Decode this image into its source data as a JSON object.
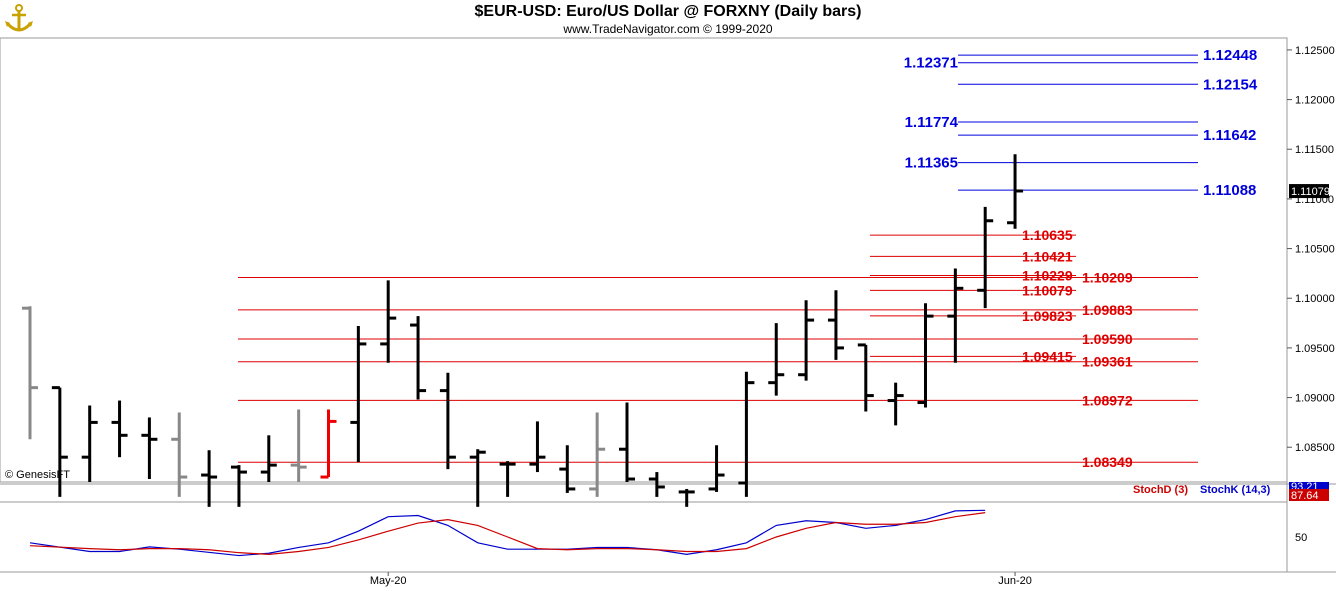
{
  "header": {
    "title": "$EUR-USD:  Euro/US Dollar @ FORXNY  (Daily bars)",
    "subtitle": "www.TradeNavigator.com © 1999-2020"
  },
  "watermark": "© GenesisFT",
  "logo_icon": "anchor-logo-icon",
  "colors": {
    "resistance": "#0000dd",
    "support": "#dd0000",
    "bars": "#000000",
    "gray_bars": "#888888",
    "red_bar": "#ee0000",
    "stochK": "#0000cc",
    "stochD": "#cc0000"
  },
  "chart_data": [
    {
      "type": "ohlc",
      "ylim": [
        1.0815,
        1.1262
      ],
      "y_ticks": [
        "1.12500",
        "1.12000",
        "1.11500",
        "1.11000",
        "1.10500",
        "1.10000",
        "1.09500",
        "1.09000",
        "1.08500"
      ],
      "last_price": "1.11079",
      "x_labels": [
        {
          "label": "May-20",
          "index": 12
        },
        {
          "label": "Jun-20",
          "index": 33
        }
      ],
      "bars": [
        {
          "o": 1.099,
          "h": 1.0992,
          "l": 1.0858,
          "c": 1.091,
          "color": "gray"
        },
        {
          "o": 1.091,
          "h": 1.091,
          "l": 1.08,
          "c": 1.084,
          "color": "black"
        },
        {
          "o": 1.084,
          "h": 1.0892,
          "l": 1.0815,
          "c": 1.0875,
          "color": "black"
        },
        {
          "o": 1.0875,
          "h": 1.0897,
          "l": 1.084,
          "c": 1.0862,
          "color": "black"
        },
        {
          "o": 1.0862,
          "h": 1.088,
          "l": 1.0818,
          "c": 1.0858,
          "color": "black"
        },
        {
          "o": 1.0858,
          "h": 1.0885,
          "l": 1.08,
          "c": 1.082,
          "color": "gray"
        },
        {
          "o": 1.0822,
          "h": 1.0847,
          "l": 1.079,
          "c": 1.082,
          "color": "black"
        },
        {
          "o": 1.083,
          "h": 1.0832,
          "l": 1.079,
          "c": 1.0825,
          "color": "black"
        },
        {
          "o": 1.0825,
          "h": 1.0862,
          "l": 1.0815,
          "c": 1.0832,
          "color": "black"
        },
        {
          "o": 1.0832,
          "h": 1.0888,
          "l": 1.0815,
          "c": 1.083,
          "color": "gray"
        },
        {
          "o": 1.082,
          "h": 1.0888,
          "l": 1.082,
          "c": 1.0876,
          "color": "red"
        },
        {
          "o": 1.0875,
          "h": 1.0972,
          "l": 1.0835,
          "c": 1.0954,
          "color": "black"
        },
        {
          "o": 1.0954,
          "h": 1.1018,
          "l": 1.0935,
          "c": 1.098,
          "color": "black"
        },
        {
          "o": 1.0973,
          "h": 1.0982,
          "l": 1.0898,
          "c": 1.0907,
          "color": "black"
        },
        {
          "o": 1.0907,
          "h": 1.0925,
          "l": 1.0828,
          "c": 1.084,
          "color": "black"
        },
        {
          "o": 1.084,
          "h": 1.0848,
          "l": 1.079,
          "c": 1.0845,
          "color": "black"
        },
        {
          "o": 1.0833,
          "h": 1.0836,
          "l": 1.08,
          "c": 1.0833,
          "color": "black"
        },
        {
          "o": 1.0833,
          "h": 1.0876,
          "l": 1.0825,
          "c": 1.084,
          "color": "black"
        },
        {
          "o": 1.0828,
          "h": 1.0852,
          "l": 1.0804,
          "c": 1.0808,
          "color": "black"
        },
        {
          "o": 1.0808,
          "h": 1.0885,
          "l": 1.08,
          "c": 1.0848,
          "color": "gray"
        },
        {
          "o": 1.0848,
          "h": 1.0895,
          "l": 1.0815,
          "c": 1.0818,
          "color": "black"
        },
        {
          "o": 1.0818,
          "h": 1.0825,
          "l": 1.08,
          "c": 1.081,
          "color": "black"
        },
        {
          "o": 1.0805,
          "h": 1.0808,
          "l": 1.079,
          "c": 1.0805,
          "color": "black"
        },
        {
          "o": 1.0808,
          "h": 1.0852,
          "l": 1.0805,
          "c": 1.0822,
          "color": "black"
        },
        {
          "o": 1.0814,
          "h": 1.0926,
          "l": 1.08,
          "c": 1.0915,
          "color": "black"
        },
        {
          "o": 1.0915,
          "h": 1.0975,
          "l": 1.0902,
          "c": 1.0923,
          "color": "black"
        },
        {
          "o": 1.0923,
          "h": 1.0998,
          "l": 1.0917,
          "c": 1.0978,
          "color": "black"
        },
        {
          "o": 1.0978,
          "h": 1.1008,
          "l": 1.0938,
          "c": 1.095,
          "color": "black"
        },
        {
          "o": 1.0953,
          "h": 1.0953,
          "l": 1.0886,
          "c": 1.0902,
          "color": "black"
        },
        {
          "o": 1.0897,
          "h": 1.0915,
          "l": 1.0872,
          "c": 1.0902,
          "color": "black"
        },
        {
          "o": 1.0895,
          "h": 1.0995,
          "l": 1.089,
          "c": 1.0982,
          "color": "black"
        },
        {
          "o": 1.0982,
          "h": 1.103,
          "l": 1.0935,
          "c": 1.101,
          "color": "black"
        },
        {
          "o": 1.1008,
          "h": 1.1092,
          "l": 1.099,
          "c": 1.1078,
          "color": "black"
        },
        {
          "o": 1.1076,
          "h": 1.1145,
          "l": 1.107,
          "c": 1.1108,
          "color": "black"
        }
      ],
      "levels": [
        {
          "value": 1.12448,
          "label": "1.12448",
          "side": "right",
          "color": "blue"
        },
        {
          "value": 1.12371,
          "label": "1.12371",
          "side": "left",
          "color": "blue"
        },
        {
          "value": 1.12154,
          "label": "1.12154",
          "side": "right",
          "color": "blue"
        },
        {
          "value": 1.11774,
          "label": "1.11774",
          "side": "left",
          "color": "blue"
        },
        {
          "value": 1.11642,
          "label": "1.11642",
          "side": "right",
          "color": "blue"
        },
        {
          "value": 1.11365,
          "label": "1.11365",
          "side": "left",
          "color": "blue"
        },
        {
          "value": 1.11088,
          "label": "1.11088",
          "side": "right",
          "color": "blue"
        },
        {
          "value": 1.10635,
          "label": "1.10635",
          "side": "left",
          "color": "red"
        },
        {
          "value": 1.10421,
          "label": "1.10421",
          "side": "left",
          "color": "red"
        },
        {
          "value": 1.10229,
          "label": "1.10229",
          "side": "left",
          "color": "red"
        },
        {
          "value": 1.10209,
          "label": "1.10209",
          "side": "right",
          "color": "red"
        },
        {
          "value": 1.10079,
          "label": "1.10079",
          "side": "left",
          "color": "red"
        },
        {
          "value": 1.09883,
          "label": "1.09883",
          "side": "right",
          "color": "red"
        },
        {
          "value": 1.09823,
          "label": "1.09823",
          "side": "left",
          "color": "red"
        },
        {
          "value": 1.0959,
          "label": "1.09590",
          "side": "right",
          "color": "red"
        },
        {
          "value": 1.09415,
          "label": "1.09415",
          "side": "left",
          "color": "red"
        },
        {
          "value": 1.09361,
          "label": "1.09361",
          "side": "right",
          "color": "red"
        },
        {
          "value": 1.08972,
          "label": "1.08972",
          "side": "right",
          "color": "red"
        },
        {
          "value": 1.08349,
          "label": "1.08349",
          "side": "right",
          "color": "red"
        }
      ]
    },
    {
      "type": "line",
      "ylim": [
        0,
        100
      ],
      "y_ticks": [
        "50"
      ],
      "legend": [
        "StochD (3)",
        "StochK (14,3)"
      ],
      "readouts": [
        "93.21",
        "87.64"
      ],
      "series": [
        {
          "name": "StochK (14,3)",
          "color": "blue",
          "values": [
            [
              0,
              40
            ],
            [
              2,
              25
            ],
            [
              3,
              25
            ],
            [
              4,
              33
            ],
            [
              5,
              29
            ],
            [
              7,
              18
            ],
            [
              8,
              22
            ],
            [
              9,
              32
            ],
            [
              10,
              40
            ],
            [
              11,
              60
            ],
            [
              12,
              85
            ],
            [
              13,
              87
            ],
            [
              14,
              70
            ],
            [
              15,
              40
            ],
            [
              16,
              29
            ],
            [
              18,
              29
            ],
            [
              19,
              32
            ],
            [
              20,
              32
            ],
            [
              21,
              28
            ],
            [
              22,
              20
            ],
            [
              23,
              28
            ],
            [
              24,
              40
            ],
            [
              25,
              70
            ],
            [
              26,
              78
            ],
            [
              27,
              75
            ],
            [
              28,
              65
            ],
            [
              29,
              70
            ],
            [
              30,
              80
            ],
            [
              31,
              95
            ],
            [
              32,
              96
            ]
          ]
        },
        {
          "name": "StochD (3)",
          "color": "red",
          "values": [
            [
              0,
              35
            ],
            [
              2,
              30
            ],
            [
              3,
              28
            ],
            [
              4,
              30
            ],
            [
              5,
              30
            ],
            [
              6,
              28
            ],
            [
              7,
              23
            ],
            [
              8,
              20
            ],
            [
              9,
              25
            ],
            [
              10,
              32
            ],
            [
              11,
              45
            ],
            [
              12,
              60
            ],
            [
              13,
              74
            ],
            [
              14,
              80
            ],
            [
              15,
              70
            ],
            [
              16,
              50
            ],
            [
              17,
              30
            ],
            [
              18,
              28
            ],
            [
              19,
              30
            ],
            [
              20,
              30
            ],
            [
              21,
              28
            ],
            [
              22,
              25
            ],
            [
              23,
              25
            ],
            [
              24,
              30
            ],
            [
              25,
              50
            ],
            [
              26,
              65
            ],
            [
              27,
              75
            ],
            [
              28,
              72
            ],
            [
              29,
              72
            ],
            [
              30,
              75
            ],
            [
              31,
              85
            ],
            [
              32,
              92
            ]
          ]
        }
      ]
    }
  ]
}
